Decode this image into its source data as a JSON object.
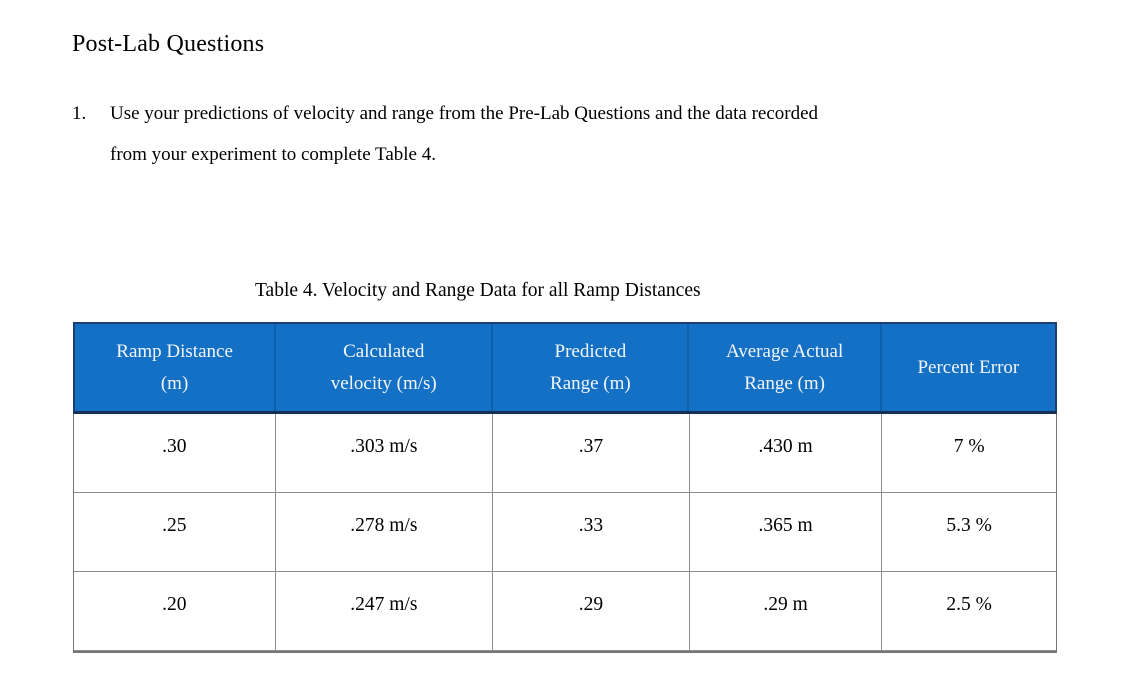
{
  "document": {
    "heading": "Post-Lab Questions",
    "question": {
      "number": "1.",
      "lines": [
        "Use your predictions of velocity and range from the Pre-Lab Questions and the data recorded",
        "from your experiment to complete Table 4."
      ]
    },
    "table_caption": "Table 4. Velocity and Range Data for all Ramp Distances"
  },
  "table": {
    "headers": [
      {
        "line1": "Ramp Distance",
        "line2": "(m)"
      },
      {
        "line1": "Calculated",
        "line2": "velocity (m/s)"
      },
      {
        "line1": "Predicted",
        "line2": "Range (m)"
      },
      {
        "line1": "Average Actual",
        "line2": "Range (m)"
      },
      {
        "line1": "Percent Error",
        "line2": ""
      }
    ],
    "rows": [
      [
        ".30",
        ".303 m/s",
        ".37",
        ".430 m",
        "7 %"
      ],
      [
        ".25",
        ".278 m/s",
        ".33",
        ".365 m",
        "5.3 %"
      ],
      [
        ".20",
        ".247 m/s",
        ".29",
        ".29 m",
        "2.5 %"
      ]
    ]
  },
  "colors": {
    "header_bg": "#1470c5",
    "header_border": "#1b3f74",
    "header_separator": "#0e5fae",
    "header_text": "#f2f6fb",
    "body_border": "#8c8c8c",
    "body_text": "#000000",
    "page_bg": "#ffffff"
  }
}
